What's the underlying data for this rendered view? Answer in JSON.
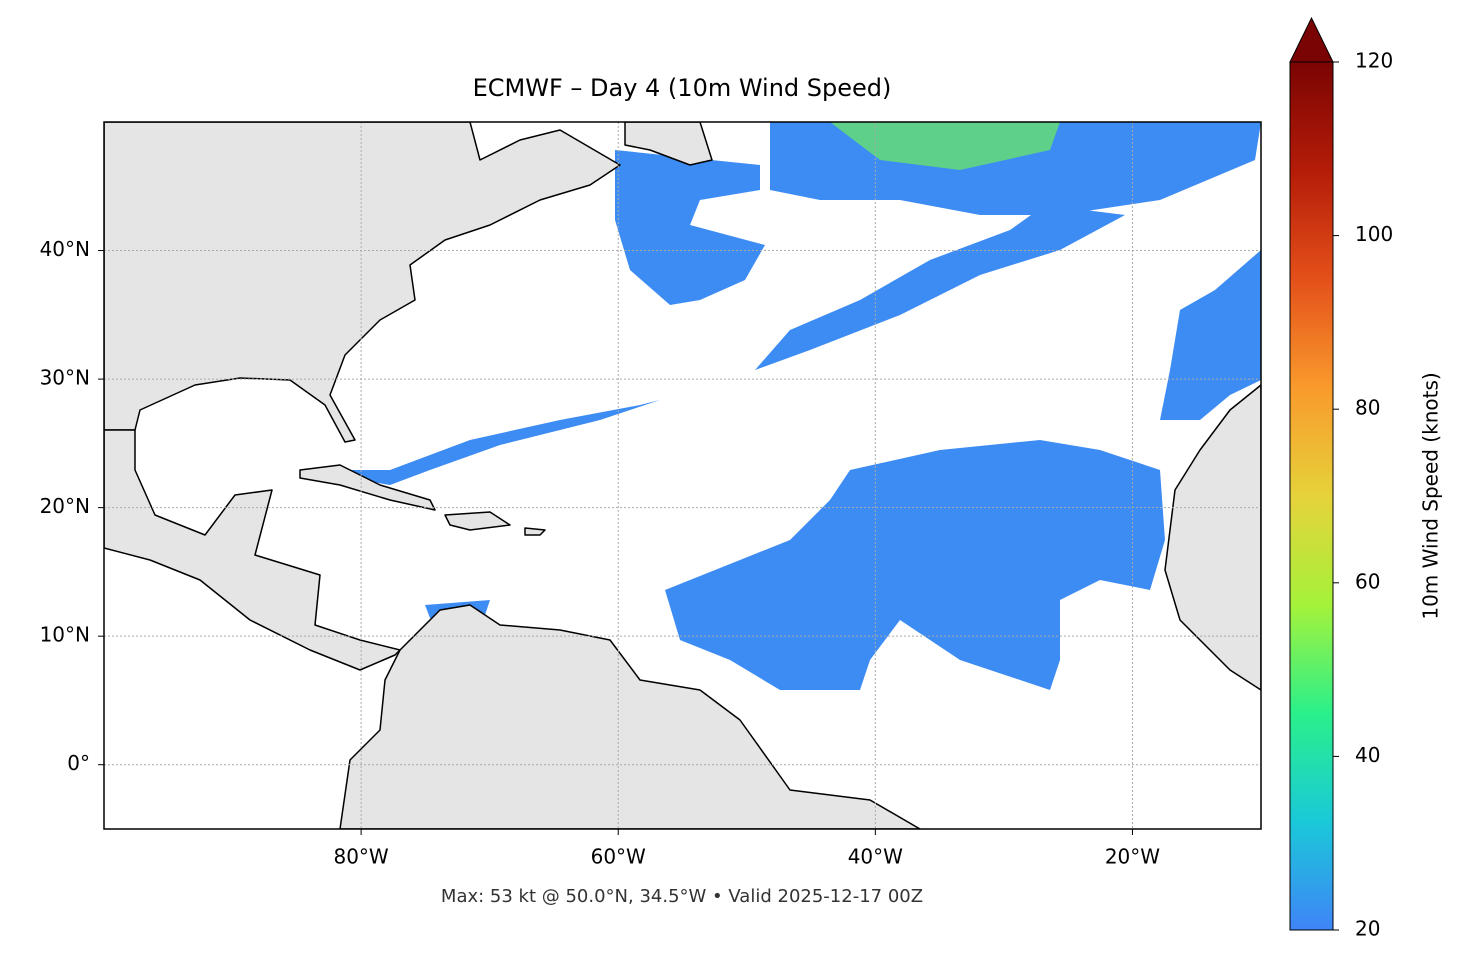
{
  "map": {
    "title": "ECMWF – Day 4 (10m Wind Speed)",
    "footer": "Max: 53 kt @ 50.0°N, 34.5°W • Valid 2025-12-17 00Z",
    "lonlim": [
      -100,
      -10
    ],
    "latlim": [
      -5,
      50
    ],
    "lonticks": [
      {
        "value": -80,
        "label": "80°W"
      },
      {
        "value": -60,
        "label": "60°W"
      },
      {
        "value": -40,
        "label": "40°W"
      },
      {
        "value": -20,
        "label": "20°W"
      }
    ],
    "latticks": [
      {
        "value": 0,
        "label": "0°"
      },
      {
        "value": 10,
        "label": "10°N"
      },
      {
        "value": 20,
        "label": "20°N"
      },
      {
        "value": 30,
        "label": "30°N"
      },
      {
        "value": 40,
        "label": "40°N"
      }
    ],
    "grid": true,
    "colorbar": {
      "label": "10m Wind Speed (knots)",
      "lim": [
        20,
        120
      ],
      "ticks": [
        20,
        40,
        60,
        80,
        100,
        120
      ],
      "colors": [
        "#3f84f7",
        "#1ac9d8",
        "#2af08a",
        "#a6f23a",
        "#e6d23a",
        "#f99a2c",
        "#e4501a",
        "#b51c08",
        "#7a0403"
      ]
    }
  }
}
